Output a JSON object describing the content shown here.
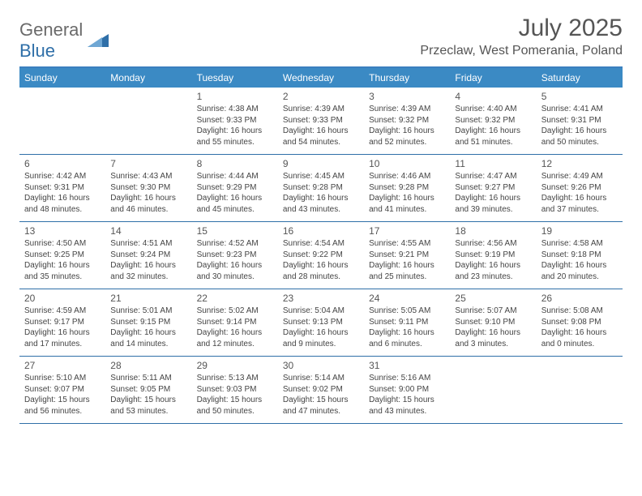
{
  "branding": {
    "logo_general": "General",
    "logo_blue": "Blue",
    "logo_color_general": "#6a6a6a",
    "logo_color_blue": "#2f6fa8",
    "triangle_color": "#2f6fa8"
  },
  "header": {
    "month_title": "July 2025",
    "location": "Przeclaw, West Pomerania, Poland"
  },
  "styling": {
    "header_bar_color": "#3b8ac4",
    "border_color": "#2f6fa8",
    "header_text_color": "#ffffff",
    "body_text_color": "#444444",
    "daynum_color": "#555555",
    "background": "#ffffff",
    "dow_fontsize": 12,
    "daynum_fontsize": 12,
    "detail_fontsize": 10,
    "title_fontsize": 30,
    "location_fontsize": 16
  },
  "dow": [
    "Sunday",
    "Monday",
    "Tuesday",
    "Wednesday",
    "Thursday",
    "Friday",
    "Saturday"
  ],
  "weeks": [
    [
      null,
      null,
      {
        "n": "1",
        "r": "Sunrise: 4:38 AM",
        "s": "Sunset: 9:33 PM",
        "d": "Daylight: 16 hours and 55 minutes."
      },
      {
        "n": "2",
        "r": "Sunrise: 4:39 AM",
        "s": "Sunset: 9:33 PM",
        "d": "Daylight: 16 hours and 54 minutes."
      },
      {
        "n": "3",
        "r": "Sunrise: 4:39 AM",
        "s": "Sunset: 9:32 PM",
        "d": "Daylight: 16 hours and 52 minutes."
      },
      {
        "n": "4",
        "r": "Sunrise: 4:40 AM",
        "s": "Sunset: 9:32 PM",
        "d": "Daylight: 16 hours and 51 minutes."
      },
      {
        "n": "5",
        "r": "Sunrise: 4:41 AM",
        "s": "Sunset: 9:31 PM",
        "d": "Daylight: 16 hours and 50 minutes."
      }
    ],
    [
      {
        "n": "6",
        "r": "Sunrise: 4:42 AM",
        "s": "Sunset: 9:31 PM",
        "d": "Daylight: 16 hours and 48 minutes."
      },
      {
        "n": "7",
        "r": "Sunrise: 4:43 AM",
        "s": "Sunset: 9:30 PM",
        "d": "Daylight: 16 hours and 46 minutes."
      },
      {
        "n": "8",
        "r": "Sunrise: 4:44 AM",
        "s": "Sunset: 9:29 PM",
        "d": "Daylight: 16 hours and 45 minutes."
      },
      {
        "n": "9",
        "r": "Sunrise: 4:45 AM",
        "s": "Sunset: 9:28 PM",
        "d": "Daylight: 16 hours and 43 minutes."
      },
      {
        "n": "10",
        "r": "Sunrise: 4:46 AM",
        "s": "Sunset: 9:28 PM",
        "d": "Daylight: 16 hours and 41 minutes."
      },
      {
        "n": "11",
        "r": "Sunrise: 4:47 AM",
        "s": "Sunset: 9:27 PM",
        "d": "Daylight: 16 hours and 39 minutes."
      },
      {
        "n": "12",
        "r": "Sunrise: 4:49 AM",
        "s": "Sunset: 9:26 PM",
        "d": "Daylight: 16 hours and 37 minutes."
      }
    ],
    [
      {
        "n": "13",
        "r": "Sunrise: 4:50 AM",
        "s": "Sunset: 9:25 PM",
        "d": "Daylight: 16 hours and 35 minutes."
      },
      {
        "n": "14",
        "r": "Sunrise: 4:51 AM",
        "s": "Sunset: 9:24 PM",
        "d": "Daylight: 16 hours and 32 minutes."
      },
      {
        "n": "15",
        "r": "Sunrise: 4:52 AM",
        "s": "Sunset: 9:23 PM",
        "d": "Daylight: 16 hours and 30 minutes."
      },
      {
        "n": "16",
        "r": "Sunrise: 4:54 AM",
        "s": "Sunset: 9:22 PM",
        "d": "Daylight: 16 hours and 28 minutes."
      },
      {
        "n": "17",
        "r": "Sunrise: 4:55 AM",
        "s": "Sunset: 9:21 PM",
        "d": "Daylight: 16 hours and 25 minutes."
      },
      {
        "n": "18",
        "r": "Sunrise: 4:56 AM",
        "s": "Sunset: 9:19 PM",
        "d": "Daylight: 16 hours and 23 minutes."
      },
      {
        "n": "19",
        "r": "Sunrise: 4:58 AM",
        "s": "Sunset: 9:18 PM",
        "d": "Daylight: 16 hours and 20 minutes."
      }
    ],
    [
      {
        "n": "20",
        "r": "Sunrise: 4:59 AM",
        "s": "Sunset: 9:17 PM",
        "d": "Daylight: 16 hours and 17 minutes."
      },
      {
        "n": "21",
        "r": "Sunrise: 5:01 AM",
        "s": "Sunset: 9:15 PM",
        "d": "Daylight: 16 hours and 14 minutes."
      },
      {
        "n": "22",
        "r": "Sunrise: 5:02 AM",
        "s": "Sunset: 9:14 PM",
        "d": "Daylight: 16 hours and 12 minutes."
      },
      {
        "n": "23",
        "r": "Sunrise: 5:04 AM",
        "s": "Sunset: 9:13 PM",
        "d": "Daylight: 16 hours and 9 minutes."
      },
      {
        "n": "24",
        "r": "Sunrise: 5:05 AM",
        "s": "Sunset: 9:11 PM",
        "d": "Daylight: 16 hours and 6 minutes."
      },
      {
        "n": "25",
        "r": "Sunrise: 5:07 AM",
        "s": "Sunset: 9:10 PM",
        "d": "Daylight: 16 hours and 3 minutes."
      },
      {
        "n": "26",
        "r": "Sunrise: 5:08 AM",
        "s": "Sunset: 9:08 PM",
        "d": "Daylight: 16 hours and 0 minutes."
      }
    ],
    [
      {
        "n": "27",
        "r": "Sunrise: 5:10 AM",
        "s": "Sunset: 9:07 PM",
        "d": "Daylight: 15 hours and 56 minutes."
      },
      {
        "n": "28",
        "r": "Sunrise: 5:11 AM",
        "s": "Sunset: 9:05 PM",
        "d": "Daylight: 15 hours and 53 minutes."
      },
      {
        "n": "29",
        "r": "Sunrise: 5:13 AM",
        "s": "Sunset: 9:03 PM",
        "d": "Daylight: 15 hours and 50 minutes."
      },
      {
        "n": "30",
        "r": "Sunrise: 5:14 AM",
        "s": "Sunset: 9:02 PM",
        "d": "Daylight: 15 hours and 47 minutes."
      },
      {
        "n": "31",
        "r": "Sunrise: 5:16 AM",
        "s": "Sunset: 9:00 PM",
        "d": "Daylight: 15 hours and 43 minutes."
      },
      null,
      null
    ]
  ]
}
